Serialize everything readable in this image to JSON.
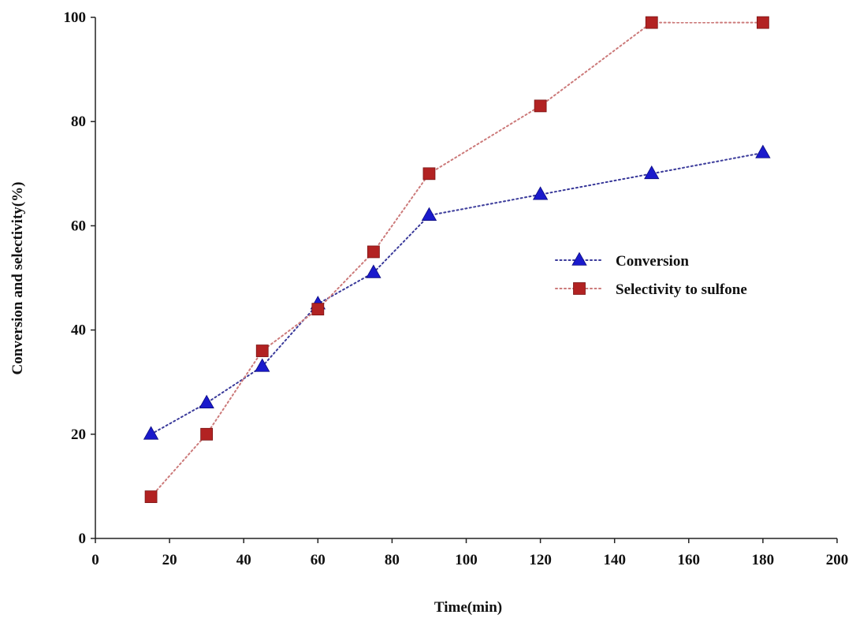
{
  "chart_data": {
    "type": "line",
    "title": "",
    "xlabel": "Time(min)",
    "ylabel": "Conversion and selectivity(%)",
    "xlim": [
      0,
      200
    ],
    "ylim": [
      0,
      100
    ],
    "xticks": [
      0,
      20,
      40,
      60,
      80,
      100,
      120,
      140,
      160,
      180,
      200
    ],
    "yticks": [
      0,
      20,
      40,
      60,
      80,
      100
    ],
    "grid": false,
    "legend_position": "right-center",
    "line_style": "dotted",
    "series": [
      {
        "name": "Conversion",
        "marker": "triangle",
        "color": "#1a1acc",
        "x": [
          15,
          30,
          45,
          60,
          75,
          90,
          120,
          150,
          180
        ],
        "y": [
          20,
          26,
          33,
          45,
          51,
          62,
          66,
          70,
          74
        ]
      },
      {
        "name": "Selectivity to sulfone",
        "marker": "square",
        "color": "#b22222",
        "x": [
          15,
          30,
          45,
          60,
          75,
          90,
          120,
          150,
          180
        ],
        "y": [
          8,
          20,
          36,
          44,
          55,
          70,
          83,
          99,
          99
        ]
      }
    ]
  }
}
